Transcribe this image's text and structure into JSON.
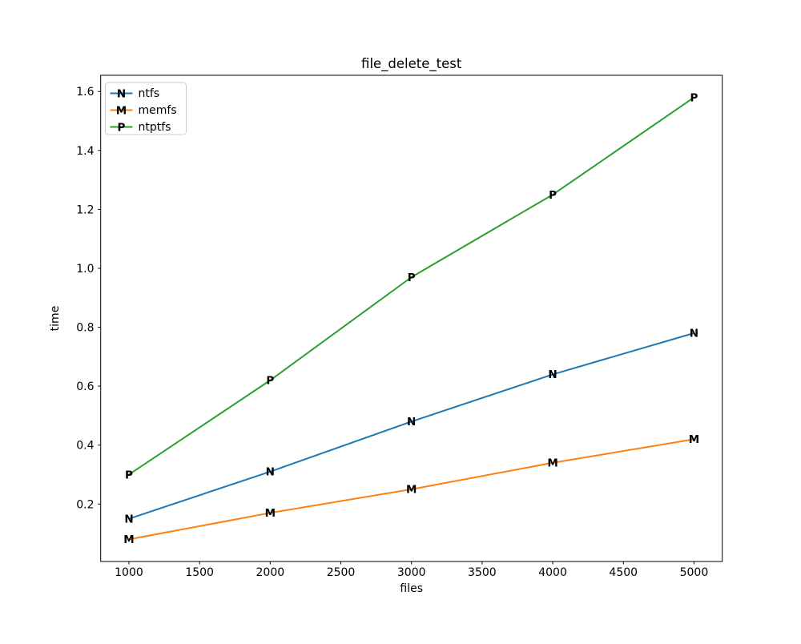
{
  "chart_data": {
    "type": "line",
    "title": "file_delete_test",
    "xlabel": "files",
    "ylabel": "time",
    "x": [
      1000,
      2000,
      3000,
      4000,
      5000
    ],
    "series": [
      {
        "name": "ntfs",
        "marker": "N",
        "color": "#1f77b4",
        "values": [
          0.15,
          0.31,
          0.48,
          0.64,
          0.78
        ]
      },
      {
        "name": "memfs",
        "marker": "M",
        "color": "#ff7f0e",
        "values": [
          0.08,
          0.17,
          0.25,
          0.34,
          0.42
        ]
      },
      {
        "name": "ntptfs",
        "marker": "P",
        "color": "#2ca02c",
        "values": [
          0.3,
          0.62,
          0.97,
          1.25,
          1.58
        ]
      }
    ],
    "xticks": [
      1000,
      1500,
      2000,
      2500,
      3000,
      3500,
      4000,
      4500,
      5000
    ],
    "yticks": [
      0.2,
      0.4,
      0.6,
      0.8,
      1.0,
      1.2,
      1.4,
      1.6
    ],
    "xlim": [
      800,
      5200
    ],
    "ylim": [
      0.005,
      1.655
    ],
    "grid": false,
    "legend_position": "upper left",
    "legend": [
      "ntfs",
      "memfs",
      "ntptfs"
    ],
    "axis_color": "#000000",
    "legend_edge_color": "#cccccc",
    "background_color": "#ffffff"
  }
}
